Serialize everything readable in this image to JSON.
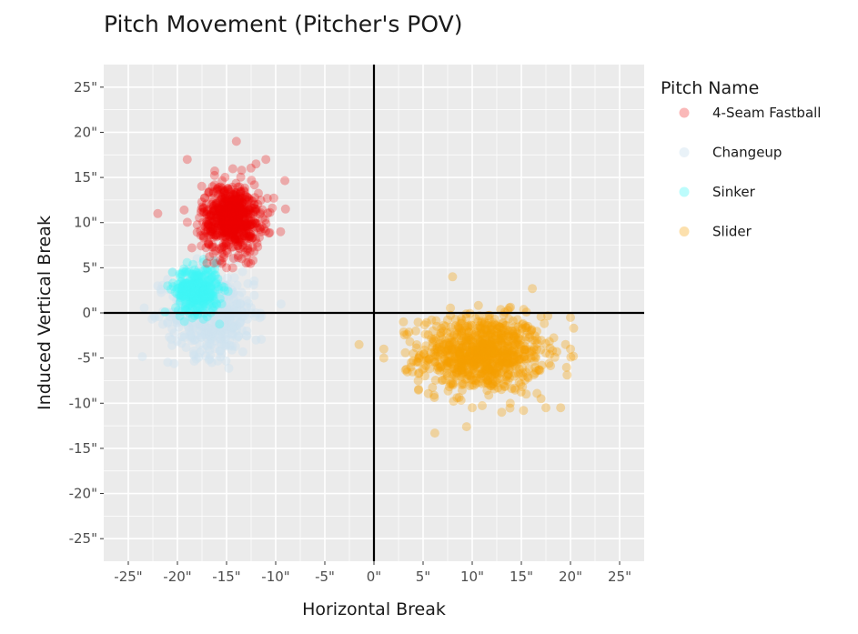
{
  "chart_data": {
    "type": "scatter",
    "title": "Pitch Movement (Pitcher's POV)",
    "xlabel": "Horizontal Break",
    "ylabel": "Induced Vertical Break",
    "xlim": [
      -27.5,
      27.5
    ],
    "ylim": [
      -27.5,
      27.5
    ],
    "x_ticks": [
      -25,
      -20,
      -15,
      -10,
      -5,
      0,
      5,
      10,
      15,
      20,
      25
    ],
    "y_ticks": [
      -25,
      -20,
      -15,
      -10,
      -5,
      0,
      5,
      10,
      15,
      20,
      25
    ],
    "x_tick_labels": [
      "-25\"",
      "-20\"",
      "-15\"",
      "-10\"",
      "-5\"",
      "0\"",
      "5\"",
      "10\"",
      "15\"",
      "20\"",
      "25\""
    ],
    "y_tick_labels": [
      "-25\"",
      "-20\"",
      "-15\"",
      "-10\"",
      "-5\"",
      "0\"",
      "5\"",
      "10\"",
      "15\"",
      "20\"",
      "25\""
    ],
    "grid": true,
    "legend": {
      "title": "Pitch Name",
      "placement": "right"
    },
    "series": [
      {
        "name": "4-Seam Fastball",
        "color": "#ee0000",
        "opacity": 0.28,
        "center": [
          -14.5,
          10.5
        ],
        "spread": [
          1.5,
          1.9
        ],
        "count": 700,
        "points": [
          [
            -19,
            17
          ],
          [
            -14,
            19
          ],
          [
            -22,
            11
          ],
          [
            -12,
            16.5
          ],
          [
            -11,
            17
          ],
          [
            -9,
            11.5
          ],
          [
            -9.5,
            9
          ],
          [
            -17,
            5.5
          ],
          [
            -15,
            5
          ],
          [
            -13,
            5.5
          ]
        ]
      },
      {
        "name": "Changeup",
        "color": "#cfe3ef",
        "opacity": 0.45,
        "center": [
          -16.5,
          0
        ],
        "spread": [
          2.2,
          2.3
        ],
        "count": 480,
        "points": [
          [
            -22,
            3
          ],
          [
            -21,
            -1
          ],
          [
            -18,
            6
          ],
          [
            -12,
            0
          ],
          [
            -12,
            -3
          ],
          [
            -16.5,
            -5.5
          ],
          [
            -15.5,
            -4.5
          ],
          [
            -20.5,
            4.5
          ],
          [
            -13,
            -2.5
          ]
        ]
      },
      {
        "name": "Sinker",
        "color": "#3ef6f6",
        "opacity": 0.35,
        "center": [
          -18,
          2.5
        ],
        "spread": [
          1.1,
          1.3
        ],
        "count": 320,
        "points": [
          [
            -21,
            3
          ],
          [
            -20.5,
            4.5
          ],
          [
            -16,
            5.5
          ],
          [
            -19,
            0.5
          ],
          [
            -15.5,
            1
          ]
        ]
      },
      {
        "name": "Slider",
        "color": "#f5a000",
        "opacity": 0.32,
        "center": [
          11,
          -4.5
        ],
        "spread": [
          3.1,
          2.1
        ],
        "count": 900,
        "points": [
          [
            8,
            4
          ],
          [
            1,
            -4
          ],
          [
            1,
            -5
          ],
          [
            3,
            -1
          ],
          [
            4,
            -4.5
          ],
          [
            4.5,
            -7.5
          ],
          [
            13,
            -11
          ],
          [
            10,
            -10.5
          ],
          [
            19,
            -10.5
          ],
          [
            17.5,
            -10.5
          ],
          [
            19.5,
            -3.5
          ],
          [
            20,
            -0.5
          ],
          [
            20,
            -4
          ],
          [
            17,
            -9.5
          ],
          [
            15.5,
            -9
          ]
        ]
      }
    ]
  }
}
